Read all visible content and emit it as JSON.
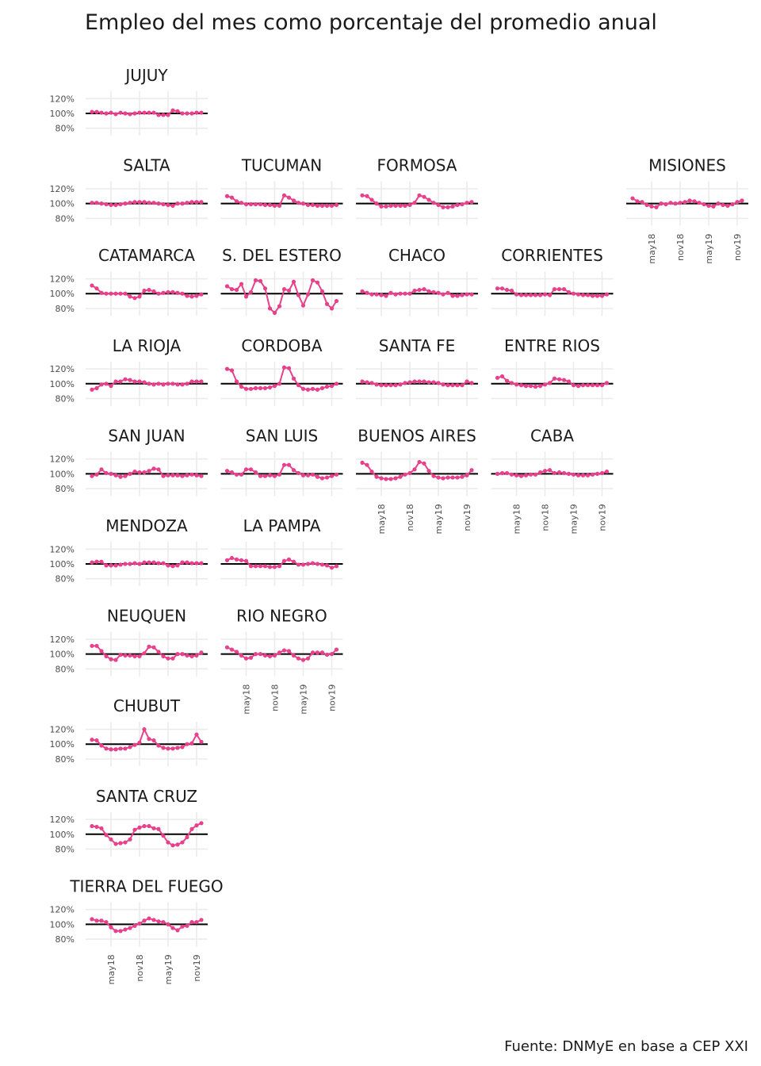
{
  "chart_data": {
    "type": "line",
    "title": "Empleo del mes como porcentaje del promedio anual",
    "caption": "Fuente: DNMyE en base a CEP XXI",
    "x": [
      "2018-01",
      "2018-02",
      "2018-03",
      "2018-04",
      "2018-05",
      "2018-06",
      "2018-07",
      "2018-08",
      "2018-09",
      "2018-10",
      "2018-11",
      "2018-12",
      "2019-01",
      "2019-02",
      "2019-03",
      "2019-04",
      "2019-05",
      "2019-06",
      "2019-07",
      "2019-08",
      "2019-09",
      "2019-10",
      "2019-11",
      "2019-12"
    ],
    "xticks": [
      {
        "value": "2018-05",
        "label": "may18"
      },
      {
        "value": "2018-11",
        "label": "nov18"
      },
      {
        "value": "2019-05",
        "label": "may19"
      },
      {
        "value": "2019-11",
        "label": "nov19"
      }
    ],
    "ylim": [
      70,
      130
    ],
    "yticks": [
      {
        "value": 80,
        "label": "80%"
      },
      {
        "value": 100,
        "label": "100%"
      },
      {
        "value": 120,
        "label": "120%"
      }
    ],
    "hline": 100,
    "grid": true,
    "series": [
      {
        "name": "JUJUY",
        "color": "#e8418c",
        "values": [
          102,
          102,
          101,
          100,
          101,
          99,
          101,
          100,
          99,
          100,
          101,
          101,
          101,
          101,
          98,
          98,
          98,
          104,
          103,
          100,
          100,
          100,
          101,
          101
        ]
      },
      {
        "name": "SALTA",
        "color": "#e8418c",
        "values": [
          101,
          101,
          100,
          99,
          98,
          98,
          99,
          100,
          101,
          102,
          102,
          102,
          101,
          101,
          100,
          99,
          98,
          97,
          100,
          100,
          101,
          102,
          102,
          102
        ]
      },
      {
        "name": "TUCUMAN",
        "color": "#e8418c",
        "values": [
          110,
          108,
          103,
          101,
          99,
          99,
          99,
          99,
          98,
          98,
          97,
          97,
          111,
          108,
          104,
          101,
          100,
          98,
          98,
          97,
          97,
          97,
          97,
          98
        ]
      },
      {
        "name": "FORMOSA",
        "color": "#e8418c",
        "values": [
          111,
          110,
          105,
          100,
          96,
          96,
          97,
          97,
          97,
          97,
          98,
          101,
          111,
          109,
          105,
          101,
          98,
          95,
          95,
          96,
          98,
          99,
          101,
          102
        ]
      },
      {
        "name": "MISIONES",
        "color": "#e8418c",
        "values": [
          107,
          103,
          102,
          98,
          96,
          95,
          100,
          99,
          101,
          100,
          101,
          102,
          104,
          103,
          101,
          99,
          97,
          96,
          100,
          98,
          97,
          99,
          102,
          104
        ]
      },
      {
        "name": "CATAMARCA",
        "color": "#e8418c",
        "values": [
          111,
          107,
          101,
          100,
          100,
          100,
          100,
          100,
          96,
          94,
          96,
          104,
          105,
          103,
          100,
          101,
          102,
          102,
          101,
          100,
          97,
          96,
          97,
          99
        ]
      },
      {
        "name": "S. DEL ESTERO",
        "color": "#e8418c",
        "values": [
          110,
          106,
          105,
          113,
          96,
          102,
          118,
          117,
          107,
          80,
          74,
          83,
          106,
          104,
          116,
          98,
          84,
          99,
          118,
          115,
          103,
          86,
          80,
          90
        ]
      },
      {
        "name": "CHACO",
        "color": "#e8418c",
        "values": [
          103,
          101,
          99,
          99,
          98,
          97,
          101,
          99,
          100,
          100,
          100,
          104,
          105,
          106,
          103,
          102,
          101,
          99,
          101,
          97,
          97,
          98,
          99,
          99
        ]
      },
      {
        "name": "CORRIENTES",
        "color": "#e8418c",
        "values": [
          107,
          107,
          105,
          104,
          99,
          98,
          98,
          98,
          98,
          98,
          99,
          98,
          106,
          106,
          106,
          102,
          100,
          99,
          98,
          98,
          97,
          97,
          97,
          99
        ]
      },
      {
        "name": "LA RIOJA",
        "color": "#e8418c",
        "values": [
          92,
          94,
          99,
          100,
          97,
          103,
          103,
          106,
          105,
          103,
          103,
          102,
          100,
          99,
          100,
          99,
          100,
          100,
          99,
          99,
          100,
          103,
          103,
          103
        ]
      },
      {
        "name": "CORDOBA",
        "color": "#e8418c",
        "values": [
          120,
          118,
          103,
          96,
          93,
          93,
          94,
          94,
          94,
          95,
          97,
          100,
          122,
          121,
          107,
          98,
          93,
          92,
          93,
          92,
          94,
          96,
          97,
          100
        ]
      },
      {
        "name": "SANTA FE",
        "color": "#e8418c",
        "values": [
          103,
          102,
          101,
          99,
          98,
          98,
          98,
          98,
          99,
          101,
          102,
          103,
          103,
          103,
          102,
          102,
          101,
          99,
          98,
          98,
          98,
          98,
          103,
          101
        ]
      },
      {
        "name": "ENTRE RIOS",
        "color": "#e8418c",
        "values": [
          108,
          110,
          104,
          101,
          99,
          98,
          97,
          97,
          96,
          97,
          99,
          101,
          107,
          106,
          105,
          103,
          98,
          97,
          98,
          98,
          98,
          98,
          98,
          101
        ]
      },
      {
        "name": "SAN JUAN",
        "color": "#e8418c",
        "values": [
          97,
          99,
          106,
          101,
          100,
          98,
          96,
          97,
          100,
          103,
          102,
          102,
          104,
          107,
          106,
          97,
          98,
          98,
          98,
          97,
          98,
          99,
          98,
          97
        ]
      },
      {
        "name": "SAN LUIS",
        "color": "#e8418c",
        "values": [
          104,
          102,
          99,
          99,
          106,
          106,
          102,
          97,
          97,
          98,
          97,
          99,
          112,
          112,
          105,
          101,
          98,
          98,
          99,
          96,
          94,
          95,
          97,
          99
        ]
      },
      {
        "name": "BUENOS AIRES",
        "color": "#e8418c",
        "values": [
          115,
          112,
          103,
          96,
          94,
          93,
          93,
          94,
          96,
          99,
          101,
          106,
          116,
          114,
          104,
          97,
          95,
          94,
          95,
          95,
          95,
          96,
          98,
          105
        ]
      },
      {
        "name": "CABA",
        "color": "#e8418c",
        "values": [
          100,
          101,
          101,
          99,
          98,
          97,
          98,
          99,
          99,
          102,
          104,
          105,
          101,
          102,
          101,
          100,
          99,
          98,
          98,
          98,
          99,
          100,
          101,
          103
        ]
      },
      {
        "name": "MENDOZA",
        "color": "#e8418c",
        "values": [
          102,
          103,
          103,
          98,
          98,
          98,
          99,
          100,
          100,
          101,
          100,
          102,
          102,
          102,
          101,
          101,
          98,
          97,
          98,
          102,
          102,
          101,
          101,
          101
        ]
      },
      {
        "name": "LA PAMPA",
        "color": "#e8418c",
        "values": [
          105,
          108,
          106,
          105,
          104,
          97,
          97,
          97,
          97,
          96,
          96,
          97,
          104,
          106,
          103,
          99,
          99,
          100,
          101,
          100,
          99,
          98,
          95,
          97
        ]
      },
      {
        "name": "NEUQUEN",
        "color": "#e8418c",
        "values": [
          111,
          111,
          104,
          97,
          93,
          92,
          99,
          98,
          98,
          97,
          97,
          101,
          110,
          109,
          103,
          97,
          94,
          94,
          100,
          100,
          98,
          97,
          98,
          102
        ]
      },
      {
        "name": "RIO NEGRO",
        "color": "#e8418c",
        "values": [
          109,
          106,
          103,
          98,
          94,
          95,
          100,
          100,
          98,
          97,
          98,
          102,
          105,
          104,
          98,
          94,
          92,
          94,
          102,
          102,
          102,
          99,
          100,
          106
        ]
      },
      {
        "name": "CHUBUT",
        "color": "#e8418c",
        "values": [
          106,
          105,
          98,
          94,
          93,
          93,
          94,
          94,
          96,
          99,
          102,
          120,
          107,
          105,
          98,
          95,
          94,
          94,
          95,
          96,
          100,
          101,
          113,
          103
        ]
      },
      {
        "name": "SANTA CRUZ",
        "color": "#e8418c",
        "values": [
          111,
          110,
          108,
          99,
          93,
          87,
          88,
          89,
          93,
          106,
          109,
          111,
          111,
          108,
          107,
          98,
          89,
          85,
          86,
          89,
          96,
          107,
          112,
          115
        ]
      },
      {
        "name": "TIERRA DEL FUEGO",
        "color": "#e8418c",
        "values": [
          107,
          105,
          105,
          103,
          96,
          91,
          91,
          93,
          95,
          98,
          101,
          105,
          108,
          106,
          104,
          103,
          100,
          95,
          92,
          97,
          98,
          103,
          103,
          106
        ]
      }
    ]
  }
}
